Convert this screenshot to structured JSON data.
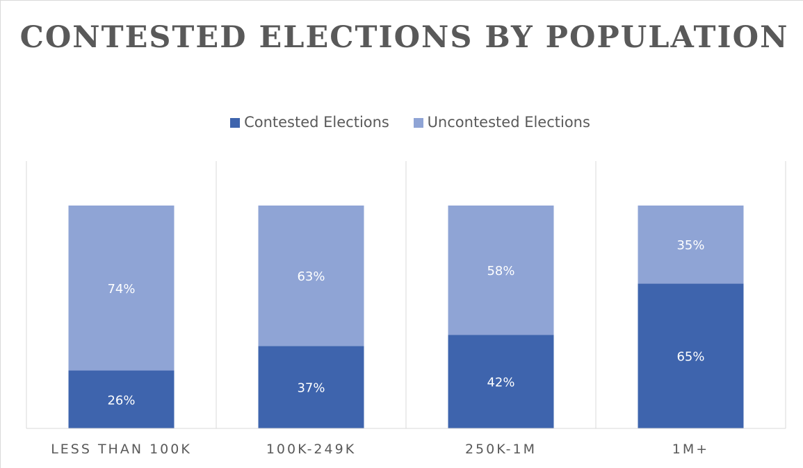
{
  "chart_data": {
    "type": "bar",
    "stacked": true,
    "title": "CONTESTED ELECTIONS BY POPULATION",
    "categories": [
      "LESS THAN 100K",
      "100K-249K",
      "250K-1M",
      "1M+"
    ],
    "series": [
      {
        "name": "Contested Elections",
        "values": [
          26,
          37,
          42,
          65
        ],
        "labels": [
          "26%",
          "37%",
          "42%",
          "65%"
        ],
        "color": "#3e64ad"
      },
      {
        "name": "Uncontested Elections",
        "values": [
          74,
          63,
          58,
          35
        ],
        "labels": [
          "74%",
          "63%",
          "58%",
          "35%"
        ],
        "color": "#8fa4d5"
      }
    ],
    "ylim": [
      0,
      100
    ],
    "legend_position": "top",
    "grid": false,
    "category_separators": true
  }
}
